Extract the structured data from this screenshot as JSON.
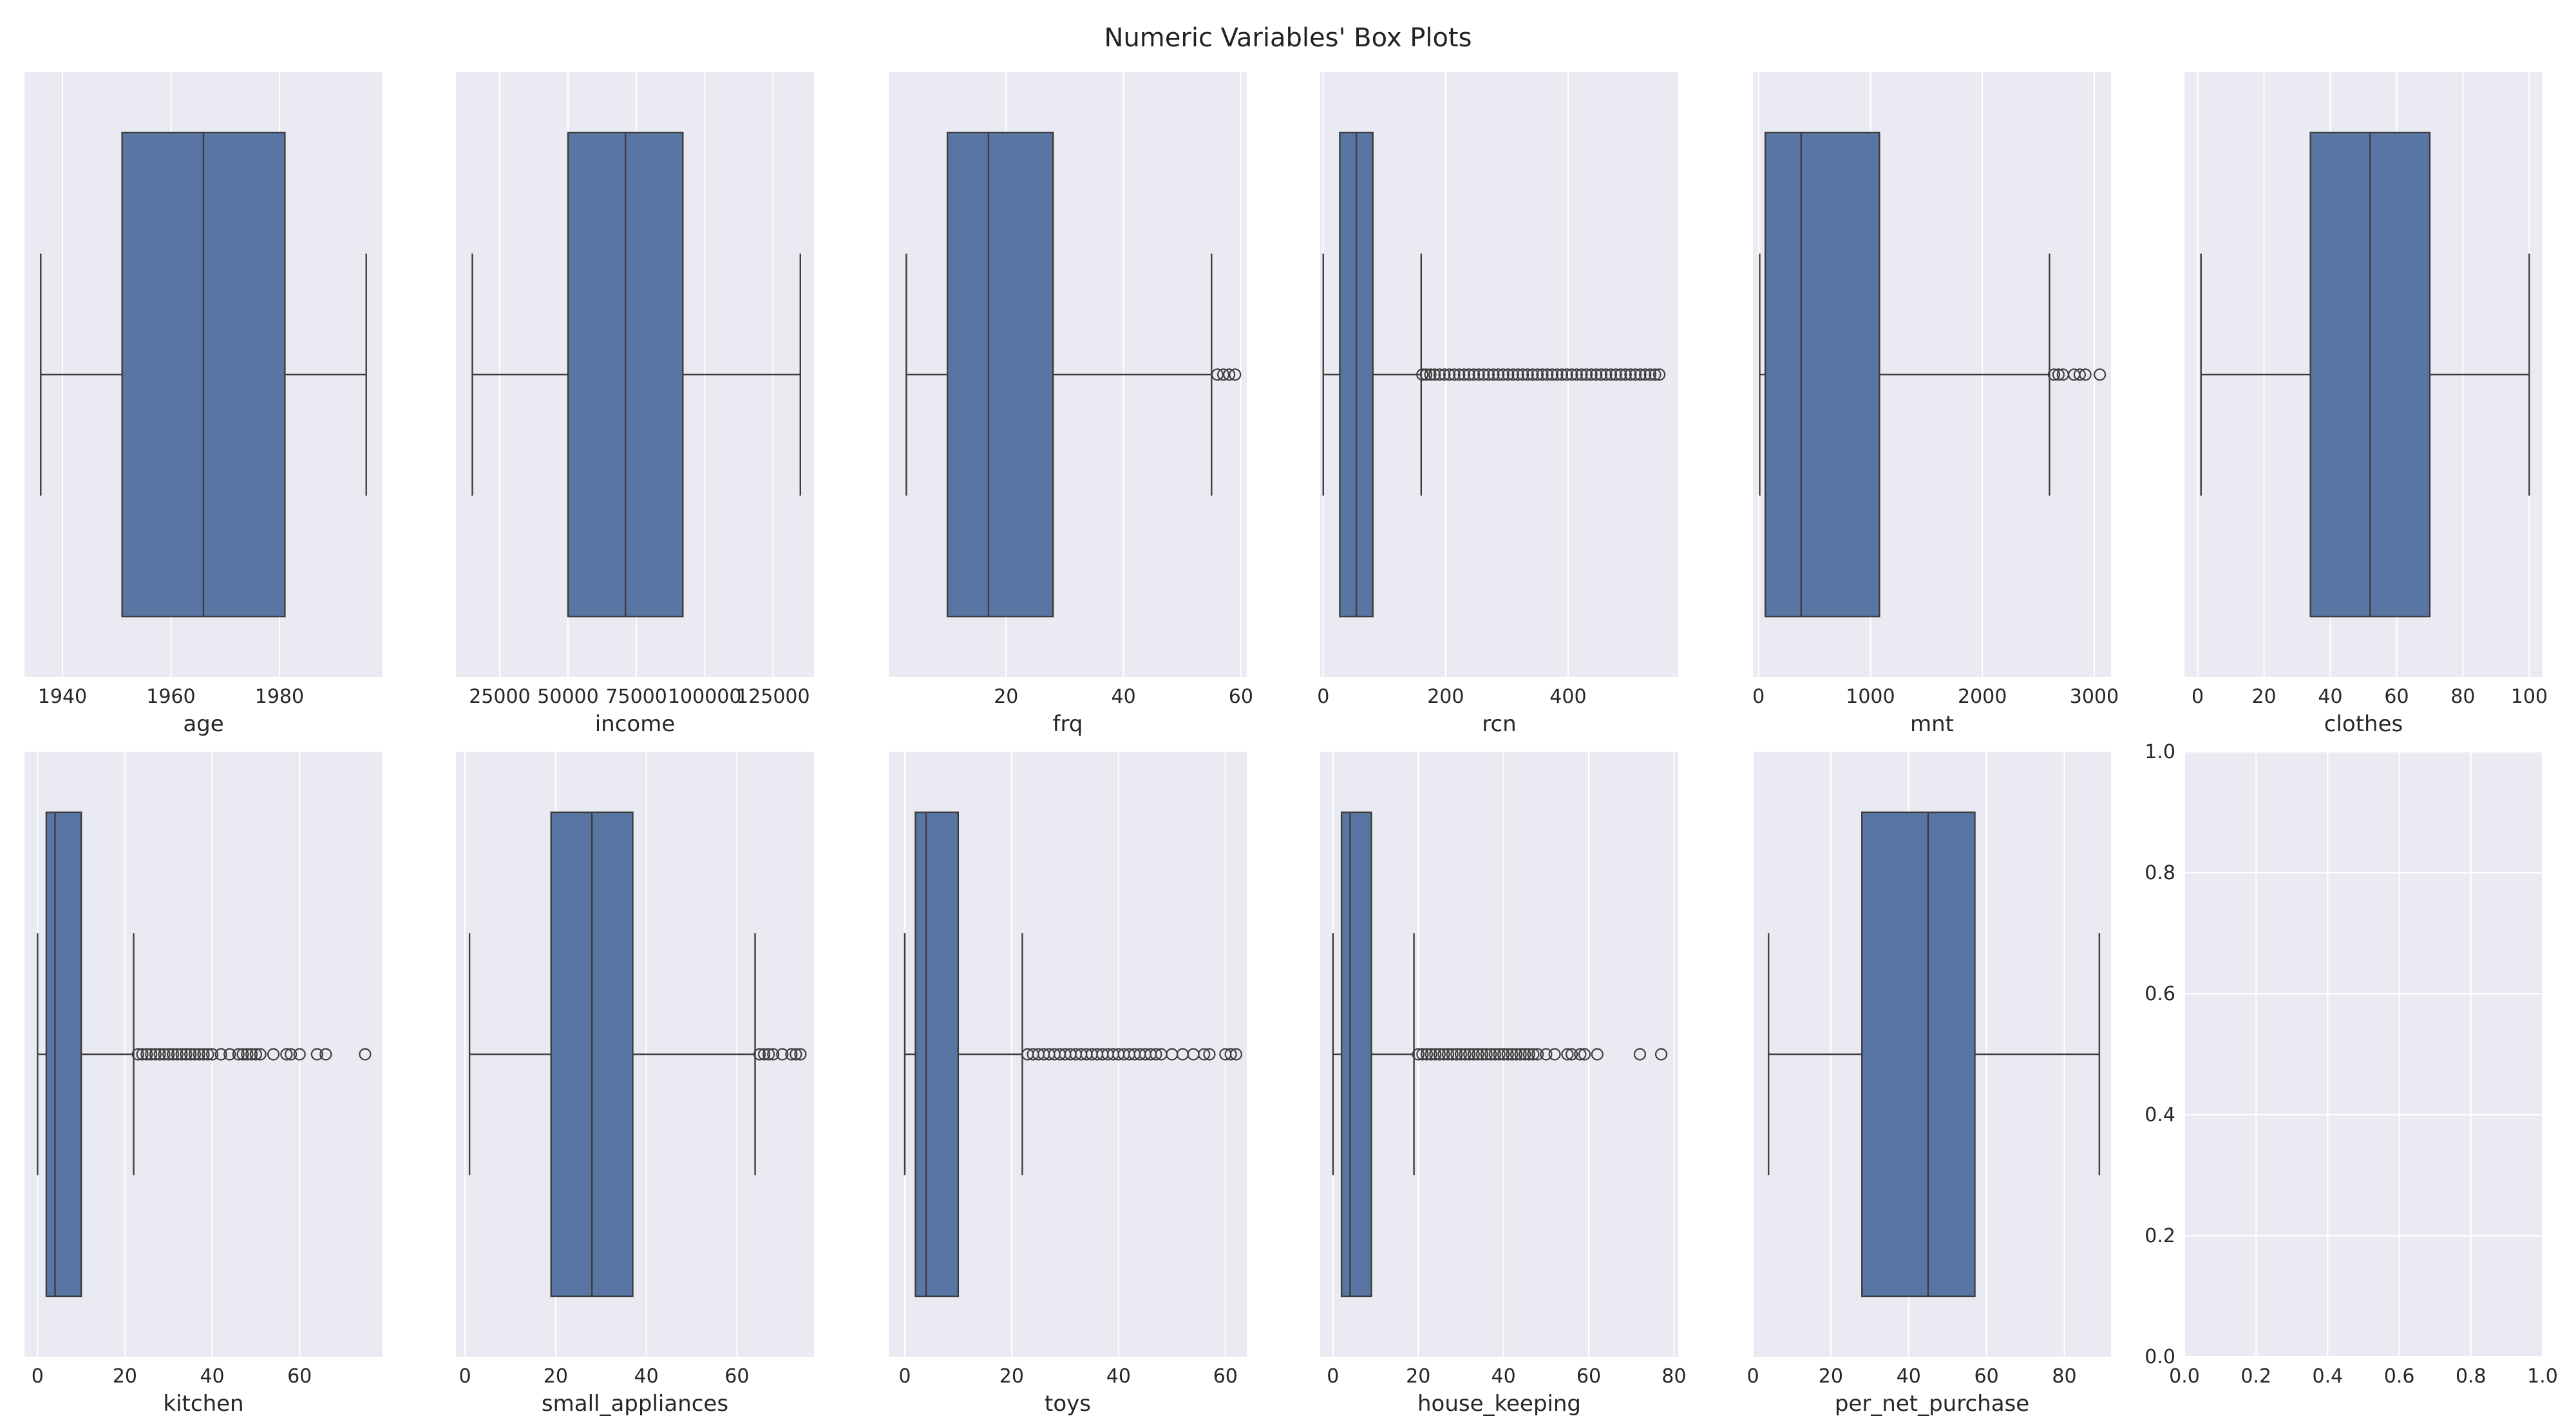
{
  "title": "Numeric Variables' Box Plots",
  "colors": {
    "panel_bg": "#eaeaf2",
    "grid": "#ffffff",
    "box_fill": "#5875a4",
    "line": "#3d3d3d",
    "text": "#262626"
  },
  "chart_data": [
    {
      "type": "box",
      "variable": "age",
      "xlabel": "age",
      "xlim": [
        1933,
        1999
      ],
      "ticks": [
        1940,
        1960,
        1980
      ],
      "tick_labels": [
        "1940",
        "1960",
        "1980"
      ],
      "whisker_low": 1936,
      "q1": 1951,
      "median": 1966,
      "q3": 1981,
      "whisker_high": 1996,
      "outliers": []
    },
    {
      "type": "box",
      "variable": "income",
      "xlabel": "income",
      "xlim": [
        9000,
        140000
      ],
      "ticks": [
        25000,
        50000,
        75000,
        100000,
        125000
      ],
      "tick_labels": [
        "25000",
        "50000",
        "75000",
        "100000",
        "125000"
      ],
      "whisker_low": 15000,
      "q1": 50000,
      "median": 71000,
      "q3": 92000,
      "whisker_high": 135000,
      "outliers": []
    },
    {
      "type": "box",
      "variable": "frq",
      "xlabel": "frq",
      "xlim": [
        0,
        61
      ],
      "ticks": [
        20,
        40,
        60
      ],
      "tick_labels": [
        "20",
        "40",
        "60"
      ],
      "whisker_low": 3,
      "q1": 10,
      "median": 17,
      "q3": 28,
      "whisker_high": 55,
      "outliers": [
        56,
        57,
        58,
        59
      ]
    },
    {
      "type": "box",
      "variable": "rcn",
      "xlabel": "rcn",
      "xlim": [
        -5,
        580
      ],
      "ticks": [
        0,
        200,
        400
      ],
      "tick_labels": [
        "0",
        "200",
        "400"
      ],
      "whisker_low": 0,
      "q1": 27,
      "median": 54,
      "q3": 81,
      "whisker_high": 160,
      "outliers": [
        162,
        168,
        175,
        182,
        190,
        198,
        206,
        214,
        222,
        230,
        238,
        246,
        254,
        262,
        270,
        278,
        286,
        294,
        302,
        310,
        318,
        326,
        334,
        342,
        350,
        358,
        366,
        374,
        382,
        390,
        398,
        406,
        414,
        422,
        430,
        438,
        446,
        454,
        462,
        470,
        478,
        486,
        494,
        502,
        510,
        518,
        526,
        534,
        542,
        549
      ]
    },
    {
      "type": "box",
      "variable": "mnt",
      "xlabel": "mnt",
      "xlim": [
        -50,
        3150
      ],
      "ticks": [
        0,
        1000,
        2000,
        3000
      ],
      "tick_labels": [
        "0",
        "1000",
        "2000",
        "3000"
      ],
      "whisker_low": 10,
      "q1": 60,
      "median": 380,
      "q3": 1080,
      "whisker_high": 2600,
      "outliers": [
        2640,
        2680,
        2720,
        2820,
        2870,
        2920,
        3050
      ]
    },
    {
      "type": "box",
      "variable": "clothes",
      "xlabel": "clothes",
      "xlim": [
        -4,
        104
      ],
      "ticks": [
        0,
        20,
        40,
        60,
        80,
        100
      ],
      "tick_labels": [
        "0",
        "20",
        "40",
        "60",
        "80",
        "100"
      ],
      "whisker_low": 1,
      "q1": 34,
      "median": 52,
      "q3": 70,
      "whisker_high": 100,
      "outliers": []
    },
    {
      "type": "box",
      "variable": "kitchen",
      "xlabel": "kitchen",
      "xlim": [
        -3,
        79
      ],
      "ticks": [
        0,
        20,
        40,
        60
      ],
      "tick_labels": [
        "0",
        "20",
        "40",
        "60"
      ],
      "whisker_low": 0,
      "q1": 2,
      "median": 4,
      "q3": 10,
      "whisker_high": 22,
      "outliers": [
        23,
        24,
        25,
        26,
        27,
        28,
        29,
        30,
        31,
        32,
        33,
        34,
        35,
        36,
        37,
        38,
        39,
        40,
        42,
        44,
        46,
        47,
        48,
        49,
        50,
        51,
        54,
        57,
        58,
        60,
        64,
        66,
        75
      ]
    },
    {
      "type": "box",
      "variable": "small_appliances",
      "xlabel": "small_appliances",
      "xlim": [
        -2,
        77
      ],
      "ticks": [
        0,
        20,
        40,
        60
      ],
      "tick_labels": [
        "0",
        "20",
        "40",
        "60"
      ],
      "whisker_low": 1,
      "q1": 19,
      "median": 28,
      "q3": 37,
      "whisker_high": 64,
      "outliers": [
        65,
        66,
        67,
        68,
        70,
        72,
        73,
        74
      ]
    },
    {
      "type": "box",
      "variable": "toys",
      "xlabel": "toys",
      "xlim": [
        -3,
        64
      ],
      "ticks": [
        0,
        20,
        40,
        60
      ],
      "tick_labels": [
        "0",
        "20",
        "40",
        "60"
      ],
      "whisker_low": 0,
      "q1": 2,
      "median": 4,
      "q3": 10,
      "whisker_high": 22,
      "outliers": [
        23,
        24,
        25,
        26,
        27,
        28,
        29,
        30,
        31,
        32,
        33,
        34,
        35,
        36,
        37,
        38,
        39,
        40,
        41,
        42,
        43,
        44,
        45,
        46,
        47,
        48,
        50,
        52,
        54,
        56,
        57,
        60,
        61,
        62
      ]
    },
    {
      "type": "box",
      "variable": "house_keeping",
      "xlabel": "house_keeping",
      "xlim": [
        -3,
        81
      ],
      "ticks": [
        0,
        20,
        40,
        60,
        80
      ],
      "tick_labels": [
        "0",
        "20",
        "40",
        "60",
        "80"
      ],
      "whisker_low": 0,
      "q1": 2,
      "median": 4,
      "q3": 9,
      "whisker_high": 19,
      "outliers": [
        20,
        21,
        22,
        23,
        24,
        25,
        26,
        27,
        28,
        29,
        30,
        31,
        32,
        33,
        34,
        35,
        36,
        37,
        38,
        39,
        40,
        41,
        42,
        43,
        44,
        45,
        46,
        47,
        48,
        50,
        52,
        55,
        56,
        58,
        59,
        62,
        72,
        77
      ]
    },
    {
      "type": "box",
      "variable": "per_net_purchase",
      "xlabel": "per_net_purchase",
      "xlim": [
        0,
        92
      ],
      "ticks": [
        0,
        20,
        40,
        60,
        80
      ],
      "tick_labels": [
        "0",
        "20",
        "40",
        "60",
        "80"
      ],
      "whisker_low": 4,
      "q1": 28,
      "median": 45,
      "q3": 57,
      "whisker_high": 89,
      "outliers": []
    },
    {
      "type": "empty",
      "xlabel": "",
      "xlim": [
        0,
        1
      ],
      "ylim": [
        0,
        1
      ],
      "ticks": [
        0,
        0.2,
        0.4,
        0.6,
        0.8,
        1.0
      ],
      "tick_labels": [
        "0.0",
        "0.2",
        "0.4",
        "0.6",
        "0.8",
        "1.0"
      ],
      "yticks": [
        0,
        0.2,
        0.4,
        0.6,
        0.8,
        1.0
      ],
      "ytick_labels": [
        "0.0",
        "0.2",
        "0.4",
        "0.6",
        "0.8",
        "1.0"
      ]
    }
  ]
}
